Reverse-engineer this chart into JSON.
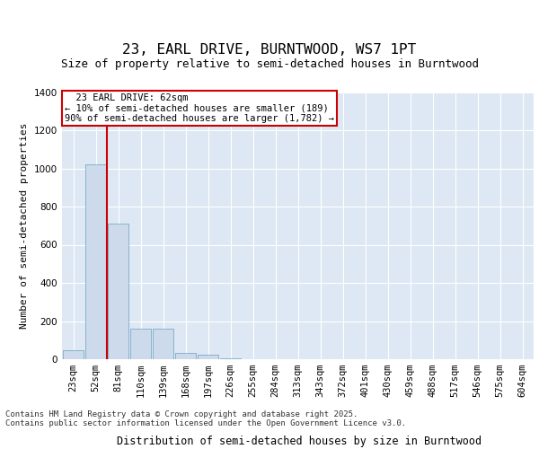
{
  "title": "23, EARL DRIVE, BURNTWOOD, WS7 1PT",
  "subtitle": "Size of property relative to semi-detached houses in Burntwood",
  "xlabel": "Distribution of semi-detached houses by size in Burntwood",
  "ylabel": "Number of semi-detached properties",
  "bar_color": "#ccdaeb",
  "bar_edge_color": "#7aaac8",
  "background_color": "#dde8f4",
  "grid_color": "#ffffff",
  "categories": [
    "23sqm",
    "52sqm",
    "81sqm",
    "110sqm",
    "139sqm",
    "168sqm",
    "197sqm",
    "226sqm",
    "255sqm",
    "284sqm",
    "313sqm",
    "343sqm",
    "372sqm",
    "401sqm",
    "430sqm",
    "459sqm",
    "488sqm",
    "517sqm",
    "546sqm",
    "575sqm",
    "604sqm"
  ],
  "values": [
    45,
    1020,
    710,
    160,
    160,
    35,
    25,
    6,
    0,
    0,
    0,
    0,
    0,
    0,
    0,
    0,
    0,
    0,
    0,
    0,
    0
  ],
  "ylim": [
    0,
    1400
  ],
  "yticks": [
    0,
    200,
    400,
    600,
    800,
    1000,
    1200,
    1400
  ],
  "property_label": "23 EARL DRIVE: 62sqm",
  "pct_smaller": 10,
  "pct_larger": 90,
  "n_smaller": 189,
  "n_larger": 1782,
  "red_line_color": "#cc0000",
  "annotation_box_color": "#ffffff",
  "annotation_box_edge_color": "#cc0000",
  "footer_line1": "Contains HM Land Registry data © Crown copyright and database right 2025.",
  "footer_line2": "Contains public sector information licensed under the Open Government Licence v3.0.",
  "title_fontsize": 11.5,
  "subtitle_fontsize": 9,
  "xlabel_fontsize": 8.5,
  "ylabel_fontsize": 8,
  "tick_fontsize": 7.5,
  "footer_fontsize": 6.5,
  "annotation_fontsize": 7.5
}
